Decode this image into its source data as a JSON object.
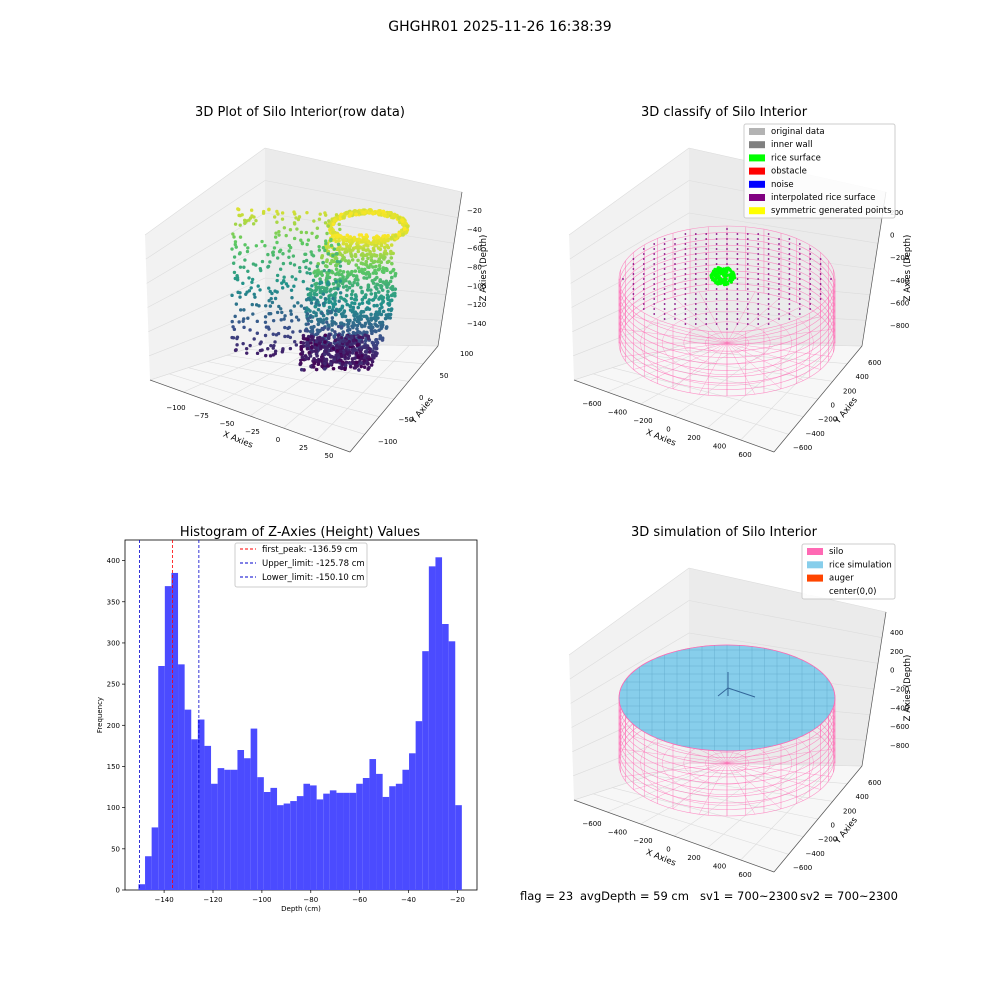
{
  "figure": {
    "title": "GHGHR01 2025-11-26 16:38:39"
  },
  "panels": {
    "raw": {
      "title": "3D Plot of Silo Interior(row data)",
      "xlabel": "X Axies",
      "ylabel": "Y Axies",
      "zlabel": "Z Axies (Depth)",
      "xticks": [
        "−100",
        "−75",
        "−50",
        "−25",
        "0",
        "25",
        "50"
      ],
      "yticks": [
        "100",
        "50",
        "0",
        "−50",
        "−100"
      ],
      "zticks": [
        "−20",
        "−40",
        "−60",
        "−80",
        "−100",
        "−120",
        "−140"
      ]
    },
    "classify": {
      "title": "3D classify of Silo Interior",
      "xlabel": "X Axies",
      "ylabel": "Y Axies",
      "zlabel": "Z Axies (Depth)",
      "xticks": [
        "−600",
        "−400",
        "−200",
        "0",
        "200",
        "400",
        "600"
      ],
      "yticks": [
        "600",
        "400",
        "200",
        "0",
        "−200",
        "−400",
        "−600"
      ],
      "zticks": [
        "200",
        "0",
        "−200",
        "−400",
        "−600",
        "−800"
      ],
      "legend": [
        {
          "label": "original data",
          "color": "#b3b3b3"
        },
        {
          "label": "inner wall",
          "color": "#808080"
        },
        {
          "label": "rice surface",
          "color": "#00ff00"
        },
        {
          "label": "obstacle",
          "color": "#ff0000"
        },
        {
          "label": "noise",
          "color": "#0000ff"
        },
        {
          "label": "interpolated rice surface",
          "color": "#800080"
        },
        {
          "label": "symmetric generated points",
          "color": "#ffff00"
        }
      ]
    },
    "simulation": {
      "title": "3D simulation of Silo Interior",
      "xlabel": "X Axies",
      "ylabel": "Y Axies",
      "zlabel": "Z Axies (Depth)",
      "xticks": [
        "−600",
        "−400",
        "−200",
        "0",
        "200",
        "400",
        "600"
      ],
      "yticks": [
        "600",
        "400",
        "200",
        "0",
        "−200",
        "−400",
        "−600"
      ],
      "zticks": [
        "400",
        "200",
        "0",
        "−200",
        "−400",
        "−600",
        "−800"
      ],
      "legend": [
        {
          "label": "silo",
          "color": "#ff69b4"
        },
        {
          "label": "rice simulation",
          "color": "#87ceeb"
        },
        {
          "label": "auger",
          "color": "#ff4500"
        },
        {
          "label": "center(0,0)",
          "color": "#ffffff"
        }
      ],
      "status": {
        "flag": "flag = 23",
        "avg": "avgDepth = 59 cm",
        "sv1": "sv1 = 700~2300",
        "sv2": "sv2 = 700~2300"
      }
    }
  },
  "chart_data": {
    "type": "bar",
    "title": "Histogram of Z-Axies (Height) Values",
    "xlabel": "Depth (cm)",
    "ylabel": "Frequency",
    "xlim": [
      -156,
      -12
    ],
    "ylim": [
      0,
      425
    ],
    "xticks": [
      -140,
      -120,
      -100,
      -80,
      -60,
      -40,
      -20
    ],
    "yticks": [
      0,
      50,
      100,
      150,
      200,
      250,
      300,
      350,
      400
    ],
    "bar_color": "#4b4bff",
    "bin_start": -150.5,
    "bin_width": 2.7,
    "values": [
      7,
      41,
      76,
      272,
      369,
      385,
      274,
      219,
      183,
      207,
      175,
      129,
      148,
      146,
      146,
      170,
      160,
      196,
      137,
      119,
      124,
      103,
      105,
      108,
      114,
      129,
      127,
      110,
      117,
      121,
      118,
      118,
      118,
      129,
      136,
      159,
      141,
      113,
      126,
      129,
      146,
      166,
      205,
      290,
      393,
      404,
      323,
      302,
      103
    ],
    "lines": [
      {
        "label": "first_peak: -136.59 cm",
        "x": -136.59,
        "color": "#ff0000"
      },
      {
        "label": "Upper_limit: -125.78 cm",
        "x": -125.78,
        "color": "#0000cc"
      },
      {
        "label": "Lower_limit: -150.10 cm",
        "x": -150.1,
        "color": "#0000cc"
      }
    ],
    "legend_position": "upper-center",
    "grid": false
  }
}
